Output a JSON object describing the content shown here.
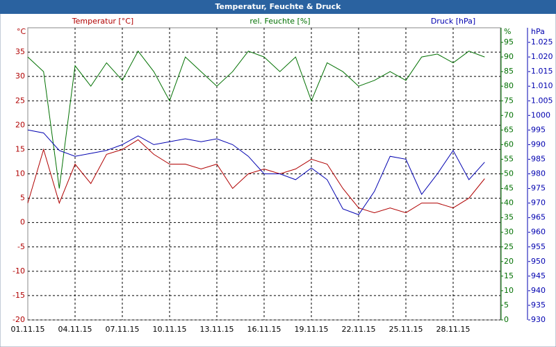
{
  "chart_data": {
    "type": "line",
    "title": "Temperatur, Feuchte & Druck",
    "y_label": "Temperatur [°C]",
    "y2_label": "rel. Feuchte [%]",
    "y3_label": "Druck [hPa]",
    "y_unit": "°C",
    "y2_unit": "%",
    "y3_unit": "hPa",
    "x": [
      "01.11.15",
      "02.11.15",
      "03.11.15",
      "04.11.15",
      "05.11.15",
      "06.11.15",
      "07.11.15",
      "08.11.15",
      "09.11.15",
      "10.11.15",
      "11.11.15",
      "12.11.15",
      "13.11.15",
      "14.11.15",
      "15.11.15",
      "16.11.15",
      "17.11.15",
      "18.11.15",
      "19.11.15",
      "20.11.15",
      "21.11.15",
      "22.11.15",
      "23.11.15",
      "24.11.15",
      "25.11.15",
      "26.11.15",
      "27.11.15",
      "28.11.15",
      "29.11.15",
      "30.11.15"
    ],
    "xticks": [
      "01.11.15",
      "04.11.15",
      "07.11.15",
      "10.11.15",
      "13.11.15",
      "16.11.15",
      "19.11.15",
      "22.11.15",
      "25.11.15",
      "28.11.15"
    ],
    "series": [
      {
        "name": "Temperatur [°C]",
        "color": "#b00000",
        "axis": "y",
        "values": [
          4,
          15,
          4,
          12,
          8,
          14,
          15,
          17,
          14,
          12,
          12,
          11,
          12,
          7,
          10,
          11,
          10,
          11,
          13,
          12,
          7,
          3,
          2,
          3,
          2,
          4,
          4,
          3,
          5,
          9
        ]
      },
      {
        "name": "rel. Feuchte [%]",
        "color": "#007000",
        "axis": "y2",
        "values": [
          90,
          85,
          45,
          87,
          80,
          88,
          82,
          92,
          85,
          75,
          90,
          85,
          80,
          85,
          92,
          90,
          85,
          90,
          75,
          88,
          85,
          80,
          82,
          85,
          82,
          90,
          91,
          88,
          92,
          90
        ]
      },
      {
        "name": "Druck [hPa]",
        "color": "#0000b0",
        "axis": "y3",
        "values": [
          995,
          994,
          988,
          986,
          987,
          988,
          990,
          993,
          990,
          991,
          992,
          991,
          992,
          990,
          986,
          980,
          980,
          978,
          982,
          978,
          968,
          966,
          974,
          986,
          985,
          973,
          980,
          988,
          978,
          984
        ]
      }
    ],
    "ylim": [
      -20,
      40
    ],
    "yticks": [
      -20,
      -15,
      -10,
      -5,
      0,
      5,
      10,
      15,
      20,
      25,
      30,
      35
    ],
    "y2lim": [
      0,
      100
    ],
    "y2ticks": [
      0,
      5,
      10,
      15,
      20,
      25,
      30,
      35,
      40,
      45,
      50,
      55,
      60,
      65,
      70,
      75,
      80,
      85,
      90,
      95
    ],
    "y3lim": [
      930,
      1030
    ],
    "y3ticks": [
      930,
      935,
      940,
      945,
      950,
      955,
      960,
      965,
      970,
      975,
      980,
      985,
      990,
      995,
      1000,
      {
        "value": 1005,
        "label": "1.005"
      },
      {
        "value": 1010,
        "label": "1.010"
      },
      {
        "value": 1015,
        "label": "1.015"
      },
      {
        "value": 1020,
        "label": "1.020"
      },
      {
        "value": 1025,
        "label": "1.025"
      }
    ],
    "grid": true
  }
}
